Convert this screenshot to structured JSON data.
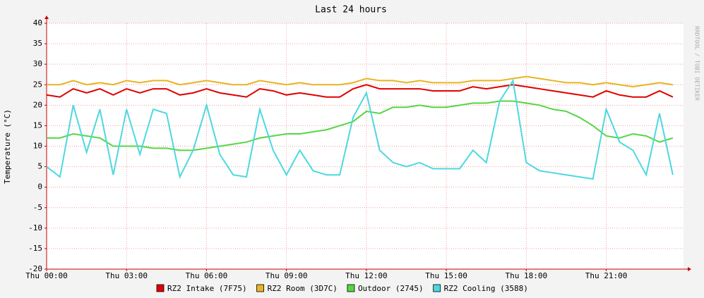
{
  "chart_data": {
    "type": "line",
    "title": "Last 24 hours",
    "ylabel": "Temperature (°C)",
    "side_text": "RRDTOOL / TOBI OETIKER",
    "x": [
      0,
      0.5,
      1,
      1.5,
      2,
      2.5,
      3,
      3.5,
      4,
      4.5,
      5,
      5.5,
      6,
      6.5,
      7,
      7.5,
      8,
      8.5,
      9,
      9.5,
      10,
      10.5,
      11,
      11.5,
      12,
      12.5,
      13,
      13.5,
      14,
      14.5,
      15,
      15.5,
      16,
      16.5,
      17,
      17.5,
      18,
      18.5,
      19,
      19.5,
      20,
      20.5,
      21,
      21.5,
      22,
      22.5,
      23,
      23.5
    ],
    "xlim": [
      0,
      23.9
    ],
    "xticks": [
      {
        "value": 0,
        "label": "Thu 00:00"
      },
      {
        "value": 3,
        "label": "Thu 03:00"
      },
      {
        "value": 6,
        "label": "Thu 06:00"
      },
      {
        "value": 9,
        "label": "Thu 09:00"
      },
      {
        "value": 12,
        "label": "Thu 12:00"
      },
      {
        "value": 15,
        "label": "Thu 15:00"
      },
      {
        "value": 18,
        "label": "Thu 18:00"
      },
      {
        "value": 21,
        "label": "Thu 21:00"
      }
    ],
    "ylim": [
      -20,
      40
    ],
    "yticks": [
      -20,
      -15,
      -10,
      -5,
      0,
      5,
      10,
      15,
      20,
      25,
      30,
      35,
      40
    ],
    "grid": true,
    "series": [
      {
        "name": "RZ2 Intake (7F75)",
        "color": "#e00000",
        "values": [
          22.5,
          22,
          24,
          23,
          24,
          22.5,
          24,
          23,
          24,
          24,
          22.5,
          23,
          24,
          23,
          22.5,
          22,
          24,
          23.5,
          22.5,
          23,
          22.5,
          22,
          22,
          24,
          25,
          24,
          24,
          24,
          24,
          23.5,
          23.5,
          23.5,
          24.5,
          24,
          24.5,
          25,
          24.5,
          24,
          23.5,
          23,
          22.5,
          22,
          23.5,
          22.5,
          22,
          22,
          23.5,
          22
        ]
      },
      {
        "name": "RZ2 Room (3D7C)",
        "color": "#e8b422",
        "values": [
          25,
          25,
          26,
          25,
          25.5,
          25,
          26,
          25.5,
          26,
          26,
          25,
          25.5,
          26,
          25.5,
          25,
          25,
          26,
          25.5,
          25,
          25.5,
          25,
          25,
          25,
          25.5,
          26.5,
          26,
          26,
          25.5,
          26,
          25.5,
          25.5,
          25.5,
          26,
          26,
          26,
          26.5,
          27,
          26.5,
          26,
          25.5,
          25.5,
          25,
          25.5,
          25,
          24.5,
          25,
          25.5,
          25
        ]
      },
      {
        "name": "Outdoor (2745)",
        "color": "#55d644",
        "values": [
          12,
          12,
          13,
          12.5,
          12,
          10,
          10,
          10,
          9.5,
          9.5,
          9,
          9,
          9.5,
          10,
          10.5,
          11,
          12,
          12.5,
          13,
          13,
          13.5,
          14,
          15,
          16,
          18.5,
          18,
          19.5,
          19.5,
          20,
          19.5,
          19.5,
          20,
          20.5,
          20.5,
          21,
          21,
          20.5,
          20,
          19,
          18.5,
          17,
          15,
          12.5,
          12,
          13,
          12.5,
          11,
          12
        ]
      },
      {
        "name": "RZ2 Cooling (3588)",
        "color": "#4dd8e0",
        "values": [
          5,
          2.5,
          20,
          8.5,
          19,
          3,
          19,
          8,
          19,
          18,
          2.5,
          9,
          20,
          8,
          3,
          2.5,
          19,
          9,
          3,
          9,
          4,
          3,
          3,
          17,
          23,
          9,
          6,
          5,
          6,
          4.5,
          4.5,
          4.5,
          9,
          6,
          21,
          26,
          6,
          4,
          3.5,
          3,
          2.5,
          2,
          19,
          11,
          9,
          3,
          18,
          3
        ]
      }
    ]
  }
}
